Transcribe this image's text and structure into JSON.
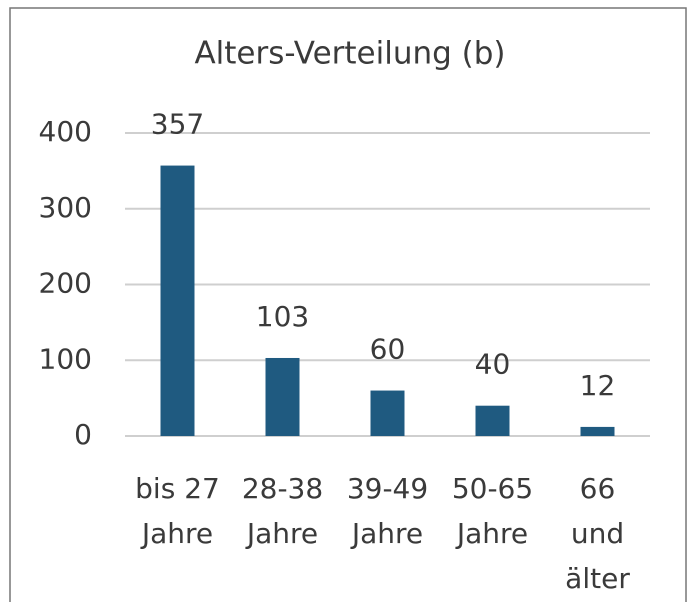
{
  "chart_data": {
    "type": "bar",
    "title": "Alters-Verteilung (b)",
    "categories": [
      [
        "bis 27",
        "Jahre"
      ],
      [
        "28-38",
        "Jahre"
      ],
      [
        "39-49",
        "Jahre"
      ],
      [
        "50-65",
        "Jahre"
      ],
      [
        "66",
        "und",
        "älter"
      ]
    ],
    "values": [
      357,
      103,
      60,
      40,
      12
    ],
    "color": "#1f5a80",
    "ylim": [
      0,
      400
    ],
    "yticks": [
      0,
      100,
      200,
      300,
      400
    ],
    "grid": true
  }
}
